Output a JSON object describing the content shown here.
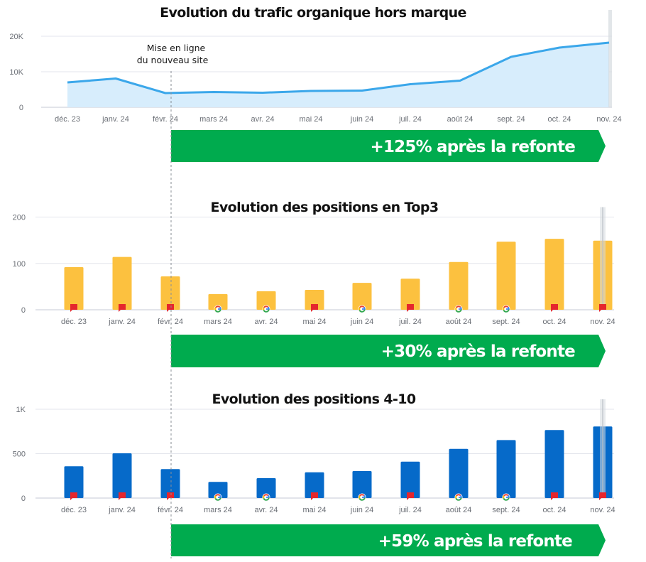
{
  "colors": {
    "line": "#3ba7ea",
    "area": "#d7edfc",
    "bar_top3": "#fcc13f",
    "bar_4_10": "#066ac9",
    "grid": "#e3e5ec",
    "banner": "#00ab4e",
    "flag": "#e5262d",
    "highlight": "#d6dbe0"
  },
  "annotation": {
    "line1": "Mise en ligne",
    "line2": "du nouveau site"
  },
  "chart_data": [
    {
      "type": "area",
      "title": "Evolution du trafic organique hors marque",
      "xlabel": "",
      "ylabel": "",
      "categories": [
        "déc. 23",
        "janv. 24",
        "févr. 24",
        "mars 24",
        "avr. 24",
        "mai 24",
        "juin 24",
        "juil. 24",
        "août 24",
        "sept. 24",
        "oct. 24",
        "nov. 24"
      ],
      "values": [
        7000,
        8100,
        4000,
        4300,
        4100,
        4600,
        4700,
        6500,
        7500,
        14200,
        16800,
        18200
      ],
      "ylim": [
        0,
        20000
      ],
      "yticks": [
        {
          "value": 0,
          "label": "0"
        },
        {
          "value": 10000,
          "label": "10K"
        },
        {
          "value": 20000,
          "label": "20K"
        }
      ],
      "grid": true,
      "banner": "+125% après la refonte"
    },
    {
      "type": "bar",
      "title": "Evolution des positions en Top3",
      "xlabel": "",
      "ylabel": "",
      "categories": [
        "déc. 23",
        "janv. 24",
        "févr. 24",
        "mars 24",
        "avr. 24",
        "mai 24",
        "juin 24",
        "juil. 24",
        "août 24",
        "sept. 24",
        "oct. 24",
        "nov. 24"
      ],
      "values": [
        92,
        114,
        72,
        34,
        40,
        43,
        58,
        67,
        103,
        147,
        153,
        149
      ],
      "markers": [
        "flag-icon",
        "flag-icon",
        "flag-icon",
        "google-icon",
        "google-icon",
        "flag-icon",
        "google-icon",
        "flag-icon",
        "google-icon",
        "google-icon",
        "flag-icon",
        "flag-icon"
      ],
      "ylim": [
        0,
        200
      ],
      "yticks": [
        {
          "value": 0,
          "label": "0"
        },
        {
          "value": 100,
          "label": "100"
        },
        {
          "value": 200,
          "label": "200"
        }
      ],
      "grid": true,
      "banner": "+30% après la refonte"
    },
    {
      "type": "bar",
      "title": "Evolution des positions 4-10",
      "xlabel": "",
      "ylabel": "",
      "categories": [
        "déc. 23",
        "janv. 24",
        "févr. 24",
        "mars 24",
        "avr. 24",
        "mai 24",
        "juin 24",
        "juil. 24",
        "août 24",
        "sept. 24",
        "oct. 24",
        "nov. 24"
      ],
      "values": [
        358,
        504,
        326,
        182,
        224,
        290,
        304,
        410,
        554,
        653,
        766,
        806
      ],
      "markers": [
        "flag-icon",
        "flag-icon",
        "flag-icon",
        "google-icon",
        "google-icon",
        "flag-icon",
        "google-icon",
        "flag-icon",
        "google-icon",
        "google-icon",
        "flag-icon",
        "flag-icon"
      ],
      "ylim": [
        0,
        1000
      ],
      "yticks": [
        {
          "value": 0,
          "label": "0"
        },
        {
          "value": 500,
          "label": "500"
        },
        {
          "value": 1000,
          "label": "1K"
        }
      ],
      "grid": true,
      "banner": "+59% après la refonte"
    }
  ]
}
